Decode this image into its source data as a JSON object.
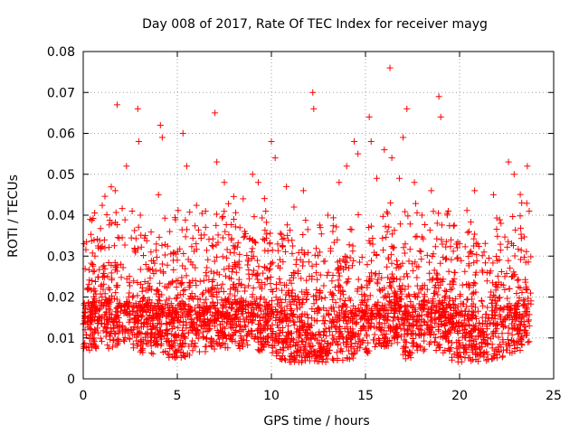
{
  "chart_data": {
    "type": "scatter",
    "title": "Day 008 of 2017, Rate Of TEC Index for receiver mayg",
    "xlabel": "GPS time / hours",
    "ylabel": "ROTI / TECUs",
    "xlim": [
      0,
      25
    ],
    "ylim": [
      0,
      0.08
    ],
    "xticks": [
      "0",
      "5",
      "10",
      "15",
      "20",
      "25"
    ],
    "yticks": [
      "0",
      "0.01",
      "0.02",
      "0.03",
      "0.04",
      "0.05",
      "0.06",
      "0.07",
      "0.08"
    ],
    "grid": true,
    "marker": "plus",
    "color": "#ff0000",
    "x_range_of_data": [
      0,
      23.8
    ],
    "points": [
      [
        0.1,
        0.012
      ],
      [
        0.3,
        0.022
      ],
      [
        0.5,
        0.015
      ],
      [
        0.8,
        0.032
      ],
      [
        1.0,
        0.018
      ],
      [
        1.3,
        0.025
      ],
      [
        1.5,
        0.038
      ],
      [
        1.7,
        0.046
      ],
      [
        1.8,
        0.067
      ],
      [
        2.0,
        0.028
      ],
      [
        2.3,
        0.052
      ],
      [
        2.6,
        0.041
      ],
      [
        2.9,
        0.066
      ],
      [
        2.95,
        0.058
      ],
      [
        3.3,
        0.035
      ],
      [
        3.6,
        0.031
      ],
      [
        4.0,
        0.045
      ],
      [
        4.1,
        0.062
      ],
      [
        4.2,
        0.059
      ],
      [
        4.6,
        0.036
      ],
      [
        5.0,
        0.029
      ],
      [
        5.3,
        0.06
      ],
      [
        5.5,
        0.052
      ],
      [
        6.0,
        0.033
      ],
      [
        6.5,
        0.041
      ],
      [
        7.0,
        0.065
      ],
      [
        7.1,
        0.053
      ],
      [
        7.5,
        0.048
      ],
      [
        8.0,
        0.039
      ],
      [
        8.5,
        0.044
      ],
      [
        9.0,
        0.05
      ],
      [
        9.3,
        0.048
      ],
      [
        9.7,
        0.041
      ],
      [
        10.0,
        0.058
      ],
      [
        10.2,
        0.054
      ],
      [
        10.8,
        0.047
      ],
      [
        11.2,
        0.042
      ],
      [
        11.7,
        0.046
      ],
      [
        12.2,
        0.07
      ],
      [
        12.25,
        0.066
      ],
      [
        12.6,
        0.037
      ],
      [
        13.0,
        0.04
      ],
      [
        13.6,
        0.048
      ],
      [
        14.0,
        0.052
      ],
      [
        14.4,
        0.058
      ],
      [
        14.6,
        0.055
      ],
      [
        15.2,
        0.064
      ],
      [
        15.3,
        0.058
      ],
      [
        15.6,
        0.049
      ],
      [
        16.0,
        0.056
      ],
      [
        16.3,
        0.076
      ],
      [
        16.4,
        0.054
      ],
      [
        16.8,
        0.049
      ],
      [
        17.0,
        0.059
      ],
      [
        17.2,
        0.066
      ],
      [
        17.6,
        0.048
      ],
      [
        18.0,
        0.04
      ],
      [
        18.5,
        0.046
      ],
      [
        18.9,
        0.069
      ],
      [
        19.0,
        0.064
      ],
      [
        19.4,
        0.041
      ],
      [
        20.0,
        0.033
      ],
      [
        20.5,
        0.036
      ],
      [
        20.8,
        0.046
      ],
      [
        21.3,
        0.031
      ],
      [
        21.8,
        0.045
      ],
      [
        22.2,
        0.038
      ],
      [
        22.6,
        0.053
      ],
      [
        22.9,
        0.05
      ],
      [
        23.3,
        0.043
      ],
      [
        23.6,
        0.052
      ],
      [
        23.7,
        0.041
      ]
    ]
  }
}
